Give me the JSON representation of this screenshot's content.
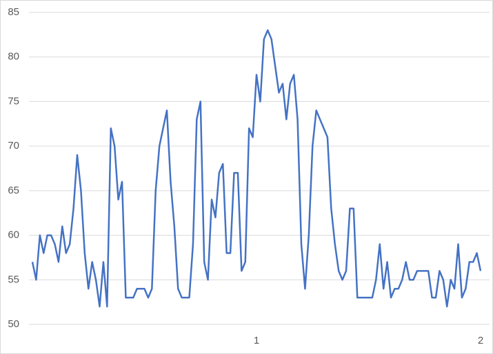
{
  "chart_data": {
    "type": "line",
    "x": [
      0,
      0.0167,
      0.0333,
      0.05,
      0.0667,
      0.0833,
      0.1,
      0.1167,
      0.1333,
      0.15,
      0.1667,
      0.1833,
      0.2,
      0.2167,
      0.2333,
      0.25,
      0.2667,
      0.2833,
      0.3,
      0.3167,
      0.3333,
      0.35,
      0.3667,
      0.3833,
      0.4,
      0.4167,
      0.4333,
      0.45,
      0.4667,
      0.4833,
      0.5,
      0.5167,
      0.5333,
      0.55,
      0.5667,
      0.5833,
      0.6,
      0.6167,
      0.6333,
      0.65,
      0.6667,
      0.6833,
      0.7,
      0.7167,
      0.7333,
      0.75,
      0.7667,
      0.7833,
      0.8,
      0.8167,
      0.8333,
      0.85,
      0.8667,
      0.8833,
      0.9,
      0.9167,
      0.9333,
      0.95,
      0.9667,
      0.9833,
      1,
      1.0167,
      1.0333,
      1.05,
      1.0667,
      1.0833,
      1.1,
      1.1167,
      1.1333,
      1.15,
      1.1667,
      1.1833,
      1.2,
      1.2167,
      1.2333,
      1.25,
      1.2667,
      1.2833,
      1.3,
      1.3167,
      1.3333,
      1.35,
      1.3667,
      1.3833,
      1.4,
      1.4167,
      1.4333,
      1.45,
      1.4667,
      1.4833,
      1.5,
      1.5167,
      1.5333,
      1.55,
      1.5667,
      1.5833,
      1.6,
      1.6167,
      1.6333,
      1.65,
      1.6667,
      1.6833,
      1.7,
      1.7167,
      1.7333,
      1.75,
      1.7667,
      1.7833,
      1.8,
      1.8167,
      1.8333,
      1.85,
      1.8667,
      1.8833,
      1.9,
      1.9167,
      1.9333,
      1.95,
      1.9667,
      1.9833,
      2
    ],
    "series": [
      {
        "color": "#4472c4",
        "values": [
          57,
          55,
          60,
          58,
          60,
          60,
          59,
          57,
          61,
          58,
          59,
          63,
          69,
          65,
          58,
          54,
          57,
          55,
          52,
          57,
          52,
          72,
          70,
          64,
          66,
          53,
          53,
          53,
          54,
          54,
          54,
          53,
          54,
          65,
          70,
          72,
          74,
          66,
          61,
          54,
          53,
          53,
          53,
          59,
          73,
          75,
          57,
          55,
          64,
          62,
          67,
          68,
          58,
          58,
          67,
          67,
          56,
          57,
          72,
          71,
          78,
          75,
          82,
          83,
          82,
          79,
          76,
          77,
          73,
          77,
          78,
          73,
          59,
          54,
          60,
          70,
          74,
          73,
          72,
          71,
          63,
          59,
          56,
          55,
          56,
          63,
          63,
          53,
          53,
          53,
          53,
          53,
          55,
          59,
          54,
          57,
          53,
          54,
          54,
          55,
          57,
          55,
          55,
          56,
          56,
          56,
          56,
          53,
          53,
          56,
          55,
          52,
          55,
          54,
          59,
          53,
          54,
          57,
          57,
          58,
          56
        ]
      }
    ],
    "xlim": [
      0,
      2
    ],
    "xticks": [
      1,
      2
    ],
    "ylim": [
      50,
      85
    ],
    "yticks": [
      50,
      55,
      60,
      65,
      70,
      75,
      80,
      85
    ],
    "grid": true
  }
}
